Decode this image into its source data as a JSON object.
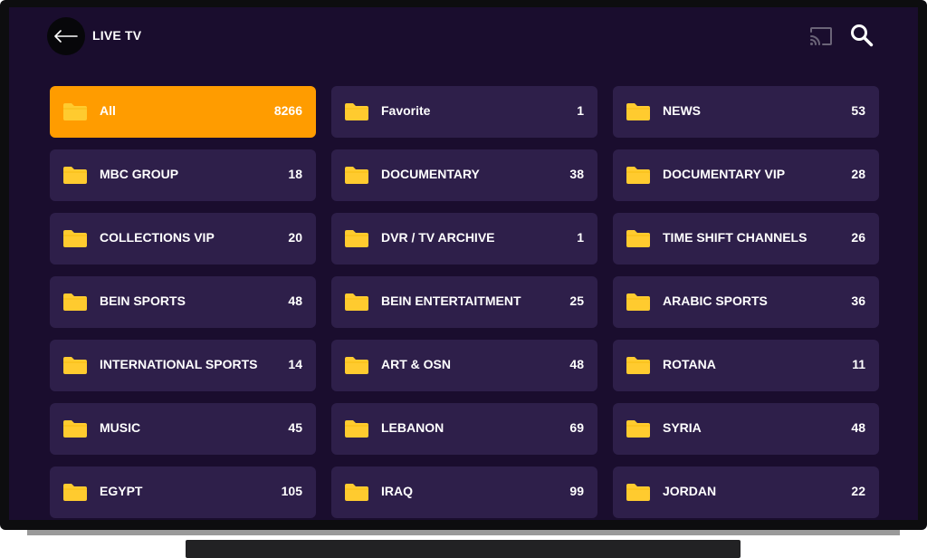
{
  "header": {
    "title": "LIVE TV",
    "back_icon": "arrow-left-icon",
    "cast_icon": "cast-icon",
    "search_icon": "search-icon"
  },
  "colors": {
    "background": "#1a0d2e",
    "tile": "#2e1f4a",
    "active_tile": "#ff9c00",
    "folder": "#ffcb2f"
  },
  "categories": [
    {
      "label": "All",
      "count": "8266",
      "active": true
    },
    {
      "label": "Favorite",
      "count": "1"
    },
    {
      "label": "NEWS",
      "count": "53"
    },
    {
      "label": "MBC GROUP",
      "count": "18"
    },
    {
      "label": "DOCUMENTARY",
      "count": "38"
    },
    {
      "label": "DOCUMENTARY VIP",
      "count": "28"
    },
    {
      "label": "COLLECTIONS VIP",
      "count": "20"
    },
    {
      "label": "DVR / TV ARCHIVE",
      "count": "1"
    },
    {
      "label": "TIME SHIFT CHANNELS",
      "count": "26"
    },
    {
      "label": "BEIN SPORTS",
      "count": "48"
    },
    {
      "label": "BEIN ENTERTAITMENT",
      "count": "25"
    },
    {
      "label": "ARABIC SPORTS",
      "count": "36"
    },
    {
      "label": "INTERNATIONAL SPORTS",
      "count": "14"
    },
    {
      "label": "ART & OSN",
      "count": "48"
    },
    {
      "label": "ROTANA",
      "count": "11"
    },
    {
      "label": "MUSIC",
      "count": "45"
    },
    {
      "label": "LEBANON",
      "count": "69"
    },
    {
      "label": "SYRIA",
      "count": "48"
    },
    {
      "label": "EGYPT",
      "count": "105"
    },
    {
      "label": "IRAQ",
      "count": "99"
    },
    {
      "label": "JORDAN",
      "count": "22"
    }
  ]
}
